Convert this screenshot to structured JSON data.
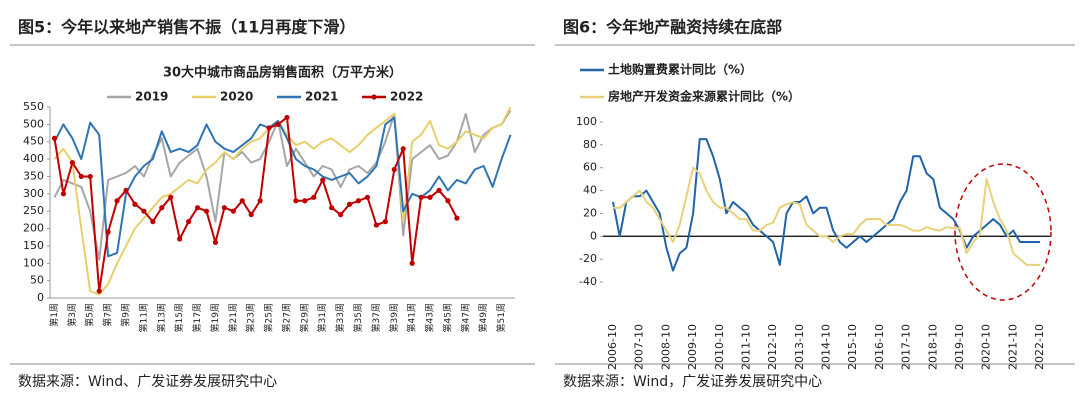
{
  "chart_data": [
    {
      "type": "line",
      "title": "图5：今年以来地产销售不振（11月再度下滑）",
      "subtitle": "30大中城市商品房销售面积（万平方米）",
      "source": "数据来源：Wind、广发证券发展研究中心",
      "categories": [
        "第1周",
        null,
        "第3周",
        null,
        "第5周",
        null,
        "第7周",
        null,
        "第9周",
        null,
        "第11周",
        null,
        "第13周",
        null,
        "第15周",
        null,
        "第17周",
        null,
        "第19周",
        null,
        "第21周",
        null,
        "第23周",
        null,
        "第25周",
        null,
        "第27周",
        null,
        "第29周",
        null,
        "第31周",
        null,
        "第33周",
        null,
        "第35周",
        null,
        "第37周",
        null,
        "第39周",
        null,
        "第41周",
        null,
        "第43周",
        null,
        "第45周",
        null,
        "第47周",
        null,
        "第49周",
        null,
        "第51周",
        null
      ],
      "ylim": [
        0,
        550
      ],
      "yticks": [
        0,
        50,
        100,
        150,
        200,
        250,
        300,
        350,
        400,
        450,
        500,
        550
      ],
      "series": [
        {
          "name": "2019",
          "color": "#a6a6a6",
          "values": [
            290,
            340,
            330,
            320,
            250,
            110,
            340,
            350,
            360,
            380,
            350,
            410,
            460,
            350,
            390,
            410,
            430,
            350,
            220,
            420,
            400,
            420,
            390,
            400,
            450,
            510,
            380,
            430,
            390,
            350,
            380,
            370,
            320,
            370,
            380,
            360,
            390,
            450,
            530,
            180,
            400,
            420,
            440,
            400,
            410,
            450,
            530,
            420,
            470,
            490,
            500,
            540
          ]
        },
        {
          "name": "2020",
          "color": "#e8cf6a",
          "values": [
            400,
            430,
            390,
            200,
            20,
            10,
            40,
            100,
            150,
            200,
            230,
            260,
            290,
            300,
            320,
            340,
            330,
            370,
            390,
            420,
            400,
            430,
            450,
            460,
            490,
            510,
            470,
            440,
            450,
            430,
            450,
            460,
            440,
            420,
            440,
            470,
            490,
            510,
            530,
            220,
            450,
            470,
            510,
            440,
            430,
            450,
            480,
            470,
            460,
            490,
            500,
            550
          ]
        },
        {
          "name": "2021",
          "color": "#2e75b6",
          "values": [
            450,
            500,
            460,
            400,
            505,
            470,
            120,
            130,
            300,
            350,
            380,
            400,
            480,
            420,
            430,
            420,
            440,
            500,
            450,
            430,
            420,
            440,
            460,
            500,
            490,
            510,
            460,
            400,
            380,
            370,
            350,
            340,
            350,
            360,
            330,
            350,
            380,
            500,
            520,
            250,
            300,
            290,
            310,
            350,
            310,
            340,
            330,
            370,
            380,
            320,
            400,
            470
          ]
        },
        {
          "name": "2022",
          "color": "#c00000",
          "markers": true,
          "values": [
            460,
            300,
            390,
            350,
            350,
            20,
            190,
            280,
            310,
            270,
            250,
            220,
            260,
            290,
            170,
            220,
            260,
            250,
            160,
            260,
            250,
            280,
            240,
            280,
            490,
            500,
            520,
            280,
            280,
            290,
            340,
            260,
            240,
            270,
            280,
            290,
            210,
            220,
            370,
            430,
            100,
            290,
            290,
            310,
            280,
            230,
            null,
            null,
            null,
            null,
            null,
            null
          ]
        }
      ]
    },
    {
      "type": "line",
      "title": "图6：今年地产融资持续在底部",
      "source": "数据来源：Wind，广发证券发展研究中心",
      "x": [
        "2006-10",
        "2007-01",
        "2007-04",
        "2007-07",
        "2007-10",
        "2008-01",
        "2008-04",
        "2008-07",
        "2008-10",
        "2009-01",
        "2009-04",
        "2009-07",
        "2009-10",
        "2010-01",
        "2010-04",
        "2010-07",
        "2010-10",
        "2011-01",
        "2011-04",
        "2011-07",
        "2011-10",
        "2012-01",
        "2012-04",
        "2012-07",
        "2012-10",
        "2013-01",
        "2013-04",
        "2013-07",
        "2013-10",
        "2014-01",
        "2014-04",
        "2014-07",
        "2014-10",
        "2015-01",
        "2015-04",
        "2015-07",
        "2015-10",
        "2016-01",
        "2016-04",
        "2016-07",
        "2016-10",
        "2017-01",
        "2017-04",
        "2017-07",
        "2017-10",
        "2018-01",
        "2018-04",
        "2018-07",
        "2018-10",
        "2019-01",
        "2019-04",
        "2019-07",
        "2019-10",
        "2020-01",
        "2020-04",
        "2020-07",
        "2020-10",
        "2021-01",
        "2021-04",
        "2021-07",
        "2021-10",
        "2022-01",
        "2022-04",
        "2022-07",
        "2022-10"
      ],
      "xlim": [
        "2006-10",
        "2022-10"
      ],
      "xticks": [
        "2006-10",
        "2007-10",
        "2008-10",
        "2009-10",
        "2010-10",
        "2011-10",
        "2012-10",
        "2013-10",
        "2014-10",
        "2015-10",
        "2016-10",
        "2017-10",
        "2018-10",
        "2019-10",
        "2020-10",
        "2021-10",
        "2022-10"
      ],
      "ylim": [
        -40,
        100
      ],
      "yticks": [
        -40,
        -20,
        0,
        20,
        40,
        60,
        80,
        100
      ],
      "series": [
        {
          "name": "土地购置费累计同比（%）",
          "color": "#1f64a8",
          "values": [
            30,
            0,
            30,
            35,
            35,
            40,
            30,
            20,
            -10,
            -30,
            -15,
            -10,
            20,
            85,
            85,
            70,
            50,
            20,
            30,
            25,
            20,
            10,
            5,
            0,
            -5,
            -25,
            20,
            30,
            30,
            35,
            20,
            25,
            25,
            5,
            -5,
            -10,
            -5,
            0,
            -5,
            0,
            5,
            10,
            15,
            30,
            40,
            70,
            70,
            55,
            50,
            25,
            20,
            15,
            5,
            -10,
            0,
            5,
            10,
            15,
            10,
            0,
            5,
            -5,
            -5,
            -5,
            -5
          ]
        },
        {
          "name": "房地产开发资金来源累计同比（%）",
          "color": "#e8d17a",
          "values": [
            25,
            25,
            30,
            35,
            40,
            30,
            25,
            15,
            5,
            -5,
            10,
            35,
            60,
            55,
            40,
            30,
            25,
            25,
            20,
            15,
            15,
            5,
            5,
            10,
            12,
            25,
            28,
            30,
            28,
            10,
            5,
            0,
            0,
            -5,
            0,
            2,
            2,
            10,
            15,
            15,
            15,
            10,
            10,
            10,
            8,
            5,
            5,
            8,
            6,
            5,
            8,
            7,
            7,
            -15,
            -5,
            2,
            50,
            30,
            15,
            5,
            -15,
            -20,
            -25,
            -25,
            -25
          ]
        }
      ]
    }
  ]
}
